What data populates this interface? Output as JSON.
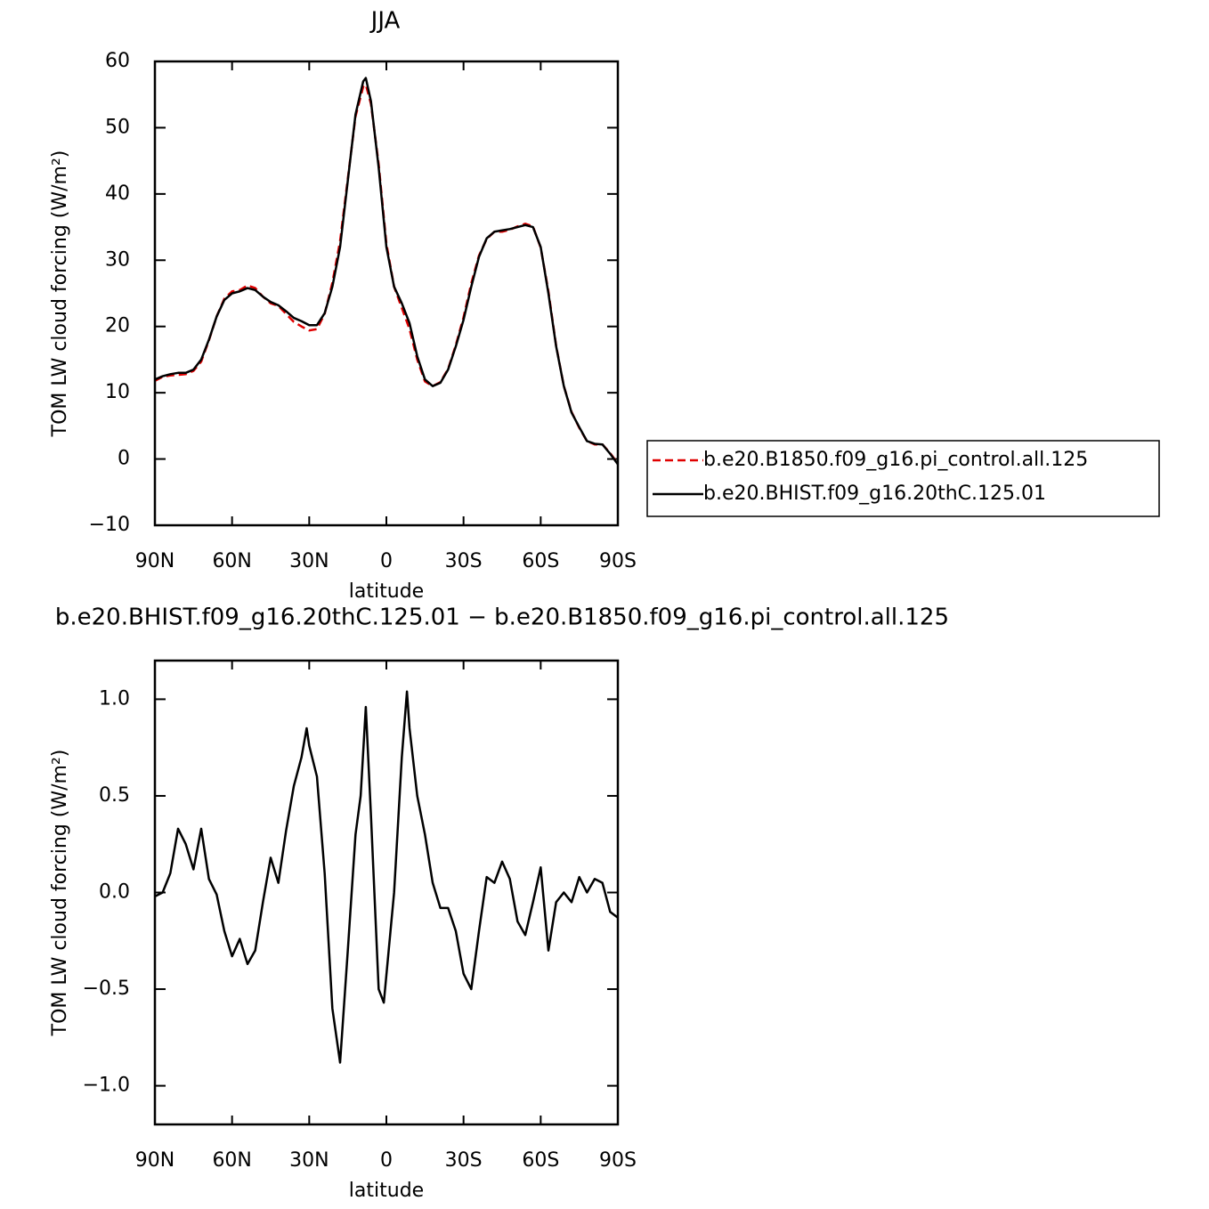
{
  "chart_data": [
    {
      "type": "line",
      "title": "JJA",
      "xlabel": "latitude",
      "ylabel": "TOM LW cloud forcing (W/m²)",
      "xlim": [
        90,
        -90
      ],
      "ylim": [
        -10,
        60
      ],
      "xticks": [
        {
          "value": 90,
          "label": "90N"
        },
        {
          "value": 60,
          "label": "60N"
        },
        {
          "value": 30,
          "label": "30N"
        },
        0,
        {
          "value": -30,
          "label": "30S"
        },
        {
          "value": -60,
          "label": "60S"
        },
        {
          "value": -90,
          "label": "90S"
        }
      ],
      "yticks": [
        {
          "value": -10,
          "label": "−10"
        },
        0,
        10,
        20,
        30,
        40,
        50,
        60
      ],
      "legend": "right",
      "x": [
        90,
        87,
        84,
        81,
        78,
        75,
        72,
        69,
        66,
        63,
        60,
        57,
        54,
        51,
        48,
        45,
        42,
        39,
        36,
        33,
        30,
        27,
        24,
        21,
        18,
        15,
        12,
        9,
        8,
        6,
        3,
        0,
        -3,
        -6,
        -9,
        -12,
        -15,
        -18,
        -21,
        -24,
        -27,
        -30,
        -33,
        -36,
        -39,
        -42,
        -45,
        -48,
        -51,
        -54,
        -57,
        -60,
        -63,
        -66,
        -69,
        -72,
        -75,
        -78,
        -81,
        -84,
        -87,
        -90
      ],
      "series": [
        {
          "name": "b.e20.B1850.f09_g16.pi_control.all.125",
          "color": "#e00000",
          "dash": true,
          "values": [
            11.8,
            12.4,
            12.6,
            12.7,
            12.8,
            13.3,
            14.7,
            17.9,
            21.5,
            24.2,
            25.3,
            25.5,
            26.2,
            25.8,
            24.5,
            23.5,
            23.1,
            21.9,
            20.7,
            20.0,
            19.4,
            19.6,
            21.9,
            26.6,
            32.9,
            42.3,
            51.7,
            56.2,
            56.5,
            53.6,
            44.5,
            32.5,
            26.0,
            22.8,
            19.6,
            15.0,
            11.7,
            11.0,
            11.6,
            13.6,
            17.2,
            21.4,
            26.5,
            30.7,
            33.2,
            34.3,
            34.3,
            34.6,
            35.1,
            35.5,
            35.1,
            31.9,
            25.3,
            17.1,
            11.0,
            7.1,
            4.7,
            2.7,
            2.2,
            2.2,
            0.9,
            -0.7
          ]
        },
        {
          "name": "b.e20.BHIST.f09_g16.20thC.125.01",
          "color": "#000000",
          "dash": false,
          "values": [
            12,
            12.5,
            12.8,
            13,
            13,
            13.5,
            15,
            18,
            21.5,
            24,
            25,
            25.3,
            25.8,
            25.5,
            24.5,
            23.7,
            23.2,
            22.3,
            21.3,
            20.8,
            20.2,
            20.2,
            22,
            26,
            32,
            42,
            52,
            57,
            57.5,
            54,
            44,
            32,
            26,
            23.5,
            20.5,
            15.5,
            12,
            11,
            11.5,
            13.5,
            17,
            21,
            26,
            30.5,
            33.3,
            34.3,
            34.5,
            34.7,
            35,
            35.3,
            35,
            32,
            25,
            17,
            11,
            7,
            4.8,
            2.7,
            2.3,
            2.2,
            0.8,
            -0.8
          ]
        }
      ]
    },
    {
      "type": "line",
      "title": "b.e20.BHIST.f09_g16.20thC.125.01 − b.e20.B1850.f09_g16.pi_control.all.125",
      "xlabel": "latitude",
      "ylabel": "TOM LW cloud forcing (W/m²)",
      "xlim": [
        90,
        -90
      ],
      "ylim": [
        -1.2,
        1.2
      ],
      "xticks": [
        {
          "value": 90,
          "label": "90N"
        },
        {
          "value": 60,
          "label": "60N"
        },
        {
          "value": 30,
          "label": "30N"
        },
        0,
        {
          "value": -30,
          "label": "30S"
        },
        {
          "value": -60,
          "label": "60S"
        },
        {
          "value": -90,
          "label": "90S"
        }
      ],
      "yticks": [
        {
          "value": -1,
          "label": "−1.0"
        },
        {
          "value": -0.5,
          "label": "−0.5"
        },
        {
          "value": 0,
          "label": "0.0"
        },
        0.5,
        {
          "value": 1,
          "label": "1.0"
        }
      ],
      "x": [
        90,
        87,
        84,
        81,
        78,
        75,
        72,
        69,
        66,
        63,
        60,
        57,
        54,
        51,
        48,
        45,
        42,
        39,
        36,
        33,
        31,
        30,
        27,
        24,
        21,
        18,
        15,
        12,
        10,
        8,
        6,
        3,
        1,
        -3,
        -6,
        -8,
        -9,
        -12,
        -15,
        -18,
        -21,
        -24,
        -27,
        -30,
        -33,
        -36,
        -39,
        -42,
        -45,
        -48,
        -51,
        -54,
        -57,
        -60,
        -63,
        -66,
        -69,
        -72,
        -75,
        -78,
        -81,
        -84,
        -87,
        -90
      ],
      "series": [
        {
          "color": "#000000",
          "dash": false,
          "values": [
            -0.02,
            0.0,
            0.1,
            0.33,
            0.25,
            0.12,
            0.33,
            0.07,
            -0.01,
            -0.2,
            -0.33,
            -0.24,
            -0.37,
            -0.3,
            -0.05,
            0.18,
            0.05,
            0.32,
            0.55,
            0.7,
            0.85,
            0.76,
            0.6,
            0.1,
            -0.6,
            -0.88,
            -0.3,
            0.3,
            0.5,
            0.96,
            0.4,
            -0.5,
            -0.57,
            0.0,
            0.7,
            1.04,
            0.85,
            0.5,
            0.3,
            0.05,
            -0.08,
            -0.08,
            -0.2,
            -0.42,
            -0.5,
            -0.2,
            0.08,
            0.05,
            0.16,
            0.07,
            -0.15,
            -0.22,
            -0.05,
            0.13,
            -0.3,
            -0.05,
            0.0,
            -0.05,
            0.08,
            0.0,
            0.07,
            0.05,
            -0.1,
            -0.13
          ]
        }
      ]
    }
  ]
}
